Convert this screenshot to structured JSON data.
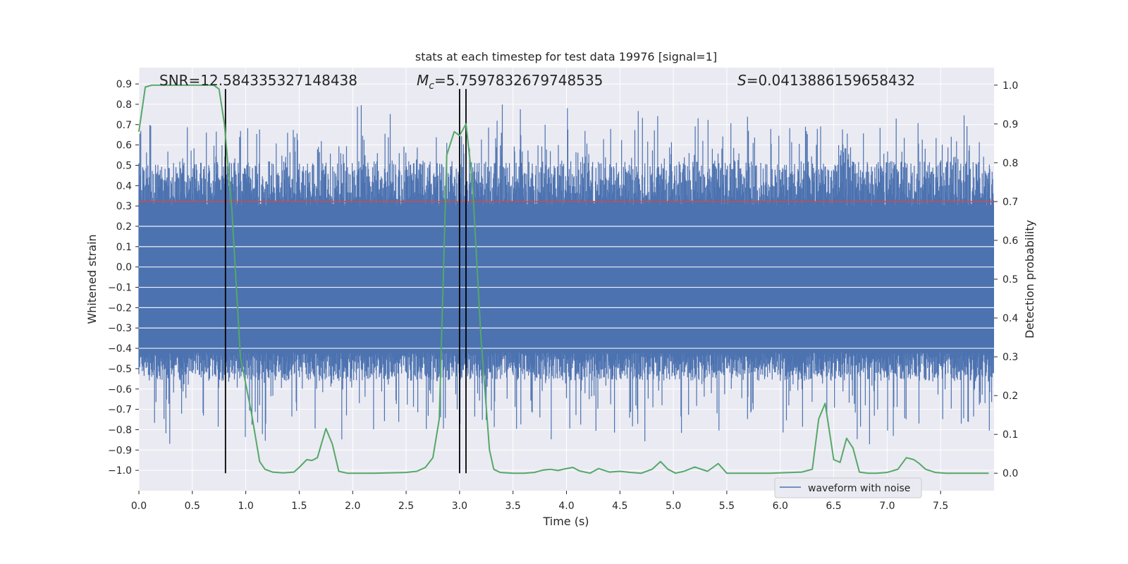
{
  "chart_data": {
    "type": "line",
    "title": "stats at each timestep for test data 19976 [signal=1]",
    "xlabel": "Time (s)",
    "ylabel_left": "Whitened strain",
    "ylabel_right": "Detection probability",
    "xlim": [
      0.0,
      8.0
    ],
    "ylim_left": [
      -1.1,
      0.98
    ],
    "ylim_right": [
      -0.045,
      1.045
    ],
    "x_ticks": [
      0.0,
      0.5,
      1.0,
      1.5,
      2.0,
      2.5,
      3.0,
      3.5,
      4.0,
      4.5,
      5.0,
      5.5,
      6.0,
      6.5,
      7.0,
      7.5
    ],
    "x_tick_labels": [
      "0.0",
      "0.5",
      "1.0",
      "1.5",
      "2.0",
      "2.5",
      "3.0",
      "3.5",
      "4.0",
      "4.5",
      "5.0",
      "5.5",
      "6.0",
      "6.5",
      "7.0",
      "7.5"
    ],
    "y_left_ticks": [
      0.9,
      0.8,
      0.7,
      0.6,
      0.5,
      0.4,
      0.3,
      0.2,
      0.1,
      0.0,
      -0.1,
      -0.2,
      -0.3,
      -0.4,
      -0.5,
      -0.6,
      -0.7,
      -0.8,
      -0.9,
      -1.0
    ],
    "y_left_tick_labels": [
      "0.9",
      "0.8",
      "0.7",
      "0.6",
      "0.5",
      "0.4",
      "0.3",
      "0.2",
      "0.1",
      "0.0",
      "−0.1",
      "−0.2",
      "−0.3",
      "−0.4",
      "−0.5",
      "−0.6",
      "−0.7",
      "−0.8",
      "−0.9",
      "−1.0"
    ],
    "y_right_ticks": [
      1.0,
      0.9,
      0.8,
      0.7,
      0.6,
      0.5,
      0.4,
      0.3,
      0.2,
      0.1,
      0.0
    ],
    "y_right_tick_labels": [
      "1.0",
      "0.9",
      "0.8",
      "0.7",
      "0.6",
      "0.5",
      "0.4",
      "0.3",
      "0.2",
      "0.1",
      "0.0"
    ],
    "threshold": 0.7,
    "vertical_lines_x": [
      0.81,
      3.0,
      3.06
    ],
    "annotations": {
      "snr": "SNR=12.584335327148438",
      "mc_symbol": "M",
      "mc_subscript": "c",
      "mc_value": "=5.7597832679748535",
      "s_symbol": "S",
      "s_value": "=0.0413886159658432"
    },
    "legend": {
      "label": "waveform with noise",
      "location": "lower-right"
    },
    "series": [
      {
        "name": "detection probability",
        "axis": "right",
        "color": "#55a868",
        "x": [
          0.0,
          0.06,
          0.12,
          0.25,
          0.5,
          0.7,
          0.75,
          0.8,
          0.87,
          0.95,
          1.05,
          1.13,
          1.18,
          1.25,
          1.35,
          1.45,
          1.5,
          1.57,
          1.62,
          1.67,
          1.75,
          1.81,
          1.87,
          1.95,
          2.2,
          2.5,
          2.6,
          2.68,
          2.75,
          2.81,
          2.88,
          2.95,
          3.0,
          3.06,
          3.12,
          3.2,
          3.28,
          3.32,
          3.38,
          3.5,
          3.6,
          3.7,
          3.78,
          3.85,
          3.92,
          4.0,
          4.06,
          4.12,
          4.22,
          4.3,
          4.4,
          4.5,
          4.6,
          4.7,
          4.8,
          4.88,
          4.95,
          5.02,
          5.1,
          5.2,
          5.32,
          5.42,
          5.5,
          5.6,
          5.7,
          5.9,
          6.2,
          6.3,
          6.36,
          6.42,
          6.5,
          6.56,
          6.62,
          6.68,
          6.74,
          6.82,
          6.9,
          7.0,
          7.1,
          7.18,
          7.25,
          7.3,
          7.36,
          7.45,
          7.55,
          7.7,
          7.95
        ],
        "values": [
          0.88,
          0.995,
          1.0,
          1.0,
          1.0,
          1.0,
          0.99,
          0.9,
          0.68,
          0.3,
          0.16,
          0.03,
          0.01,
          0.003,
          0.001,
          0.003,
          0.015,
          0.035,
          0.033,
          0.04,
          0.115,
          0.075,
          0.005,
          0.0,
          0.0,
          0.002,
          0.005,
          0.015,
          0.04,
          0.14,
          0.82,
          0.88,
          0.87,
          0.9,
          0.75,
          0.35,
          0.06,
          0.01,
          0.002,
          0.0,
          0.0,
          0.002,
          0.008,
          0.01,
          0.007,
          0.012,
          0.015,
          0.006,
          0.0,
          0.012,
          0.003,
          0.005,
          0.002,
          0.0,
          0.01,
          0.03,
          0.01,
          0.0,
          0.005,
          0.016,
          0.005,
          0.025,
          0.0,
          0.0,
          0.0,
          0.0,
          0.003,
          0.01,
          0.14,
          0.18,
          0.035,
          0.028,
          0.09,
          0.065,
          0.003,
          0.0,
          0.0,
          0.002,
          0.01,
          0.04,
          0.035,
          0.025,
          0.01,
          0.002,
          0.0,
          0.0,
          0.0
        ]
      },
      {
        "name": "waveform with noise",
        "axis": "left",
        "color": "#4c72b0",
        "kind": "noise",
        "envelope_upper": 0.3,
        "envelope_lower": -0.42,
        "seed": 19976
      }
    ]
  }
}
